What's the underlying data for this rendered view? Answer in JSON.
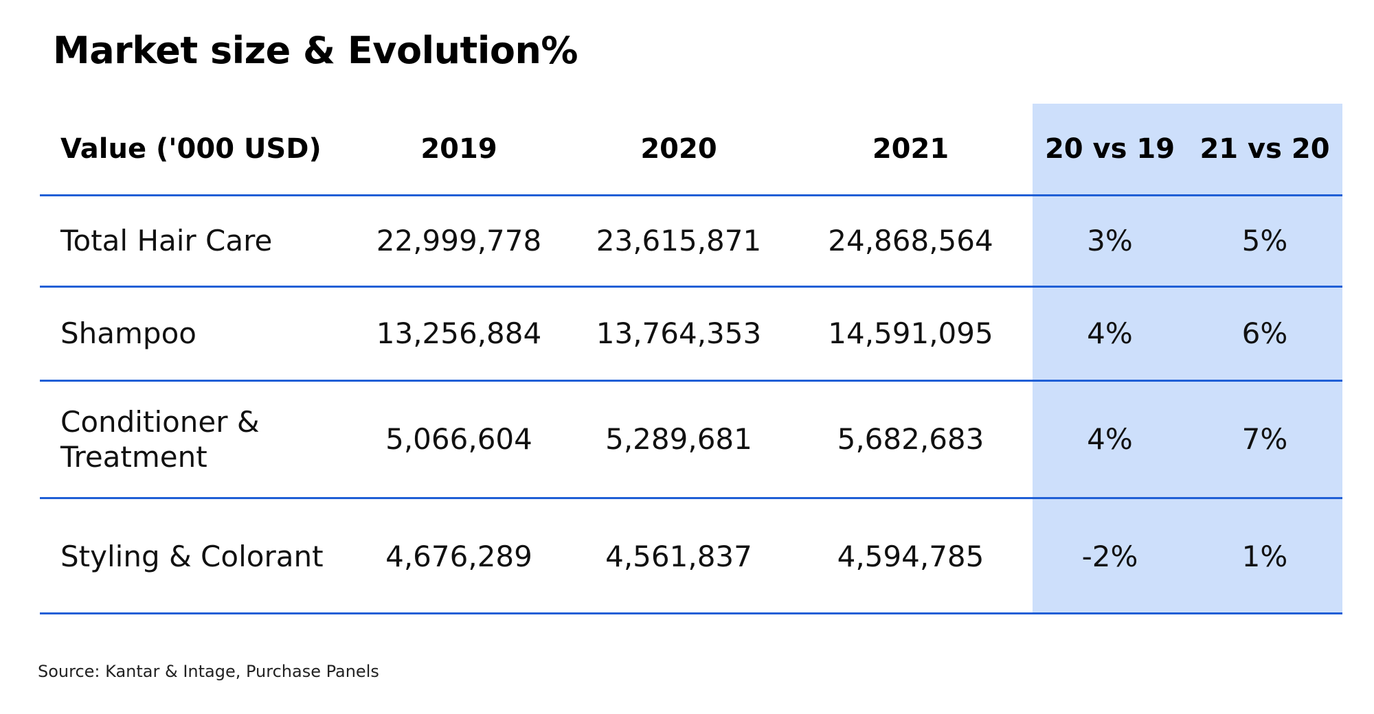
{
  "title": "Market size & Evolution%",
  "chart_data": {
    "type": "table",
    "columns": [
      "Value ('000 USD)",
      "2019",
      "2020",
      "2021",
      "20 vs 19",
      "21 vs 20"
    ],
    "rows": [
      {
        "label": "Total Hair Care",
        "values": [
          "22,999,778",
          "23,615,871",
          "24,868,564",
          "3%",
          "5%"
        ]
      },
      {
        "label": "Shampoo",
        "values": [
          "13,256,884",
          "13,764,353",
          "14,591,095",
          "4%",
          "6%"
        ]
      },
      {
        "label": "Conditioner & Treatment",
        "values": [
          "5,066,604",
          "5,289,681",
          "5,682,683",
          "4%",
          "7%"
        ]
      },
      {
        "label": "Styling & Colorant",
        "values": [
          "4,676,289",
          "4,561,837",
          "4,594,785",
          "-2%",
          "1%"
        ]
      }
    ]
  },
  "colors": {
    "rule": "#1f5fd6",
    "highlight": "#cddffb"
  },
  "source": "Source: Kantar & Intage, Purchase Panels"
}
